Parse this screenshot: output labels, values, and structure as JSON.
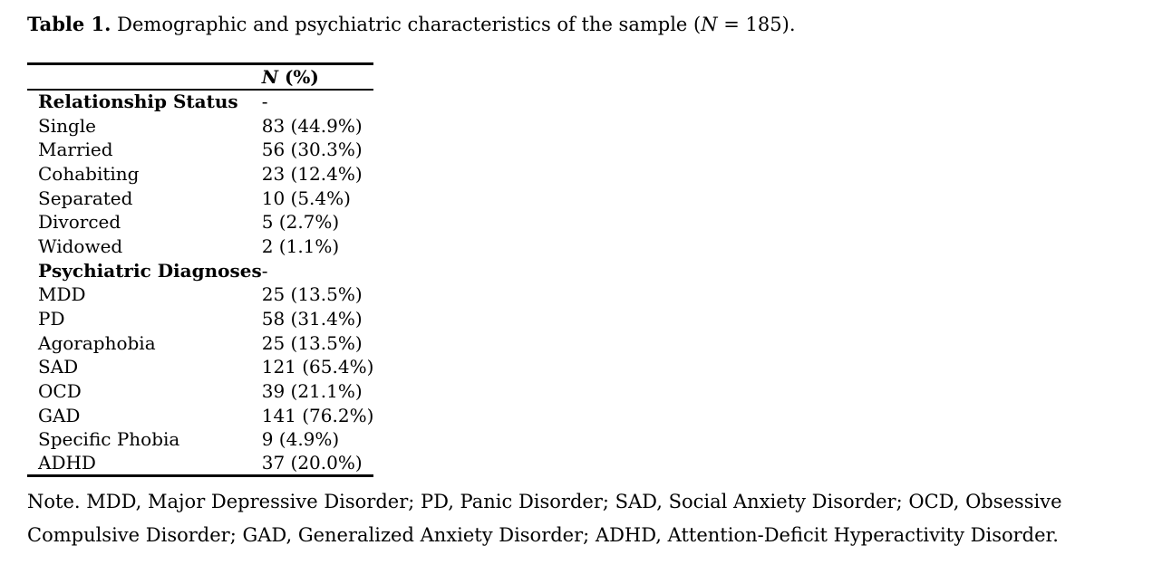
{
  "title": {
    "label": "Table 1.",
    "text_before_n": " Demographic and psychiatric characteristics of the sample (",
    "n_symbol": "N",
    "text_after_n": " = 185)."
  },
  "table": {
    "header": {
      "n_symbol": "N",
      "rest": " (%)"
    },
    "rows": [
      {
        "label": "Relationship Status",
        "value": "-",
        "section": true
      },
      {
        "label": "Single",
        "value": "83 (44.9%)"
      },
      {
        "label": "Married",
        "value": "56 (30.3%)"
      },
      {
        "label": "Cohabiting",
        "value": "23 (12.4%)"
      },
      {
        "label": "Separated",
        "value": "10 (5.4%)"
      },
      {
        "label": "Divorced",
        "value": "5 (2.7%)"
      },
      {
        "label": "Widowed",
        "value": "2 (1.1%)"
      },
      {
        "label": "Psychiatric Diagnoses",
        "value": "-",
        "section": true
      },
      {
        "label": "MDD",
        "value": "25 (13.5%)"
      },
      {
        "label": "PD",
        "value": "58 (31.4%)"
      },
      {
        "label": "Agoraphobia",
        "value": "25 (13.5%)"
      },
      {
        "label": "SAD",
        "value": "121 (65.4%)"
      },
      {
        "label": "OCD",
        "value": "39 (21.1%)"
      },
      {
        "label": "GAD",
        "value": "141 (76.2%)"
      },
      {
        "label": "Specific Phobia",
        "value": "9 (4.9%)"
      },
      {
        "label": "ADHD",
        "value": "37 (20.0%)"
      }
    ]
  },
  "note": {
    "text": "Note. MDD, Major Depressive Disorder; PD, Panic Disorder; SAD, Social Anxiety Disorder; OCD, Obsessive Compulsive Disorder; GAD, Generalized Anxiety Disorder; ADHD, Attention-Deficit Hyperactivity Disorder."
  },
  "colors": {
    "text": "#000000",
    "background": "#ffffff",
    "rule": "#000000"
  }
}
